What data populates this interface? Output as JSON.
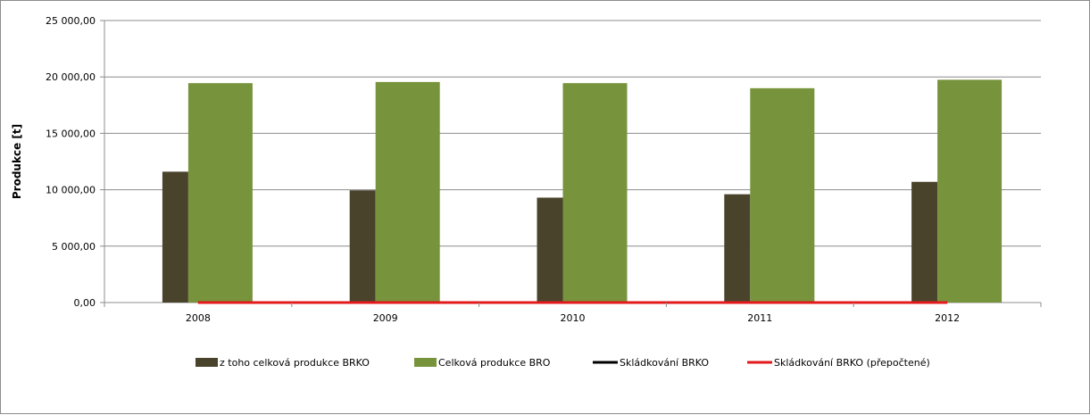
{
  "chart_data": {
    "type": "bar",
    "title": "",
    "xlabel": "",
    "ylabel": "Produkce [t]",
    "ylim": [
      0,
      25000
    ],
    "yticks": [
      "0,00",
      "5 000,00",
      "10 000,00",
      "15 000,00",
      "20 000,00",
      "25 000,00"
    ],
    "ytick_values": [
      0,
      5000,
      10000,
      15000,
      20000,
      25000
    ],
    "categories": [
      "2008",
      "2009",
      "2010",
      "2011",
      "2012"
    ],
    "grid": "horizontal",
    "legend_position": "bottom",
    "series": [
      {
        "name": "z toho celková produkce BRKO",
        "kind": "bar",
        "color": "#4a432c",
        "values": [
          11600,
          9950,
          9300,
          9600,
          10700
        ]
      },
      {
        "name": "Celková produkce BRO",
        "kind": "bar",
        "color": "#77933c",
        "values": [
          19450,
          19550,
          19450,
          19000,
          19750
        ]
      },
      {
        "name": "Skládkování BRKO",
        "kind": "line",
        "color": "#000000",
        "values": [
          0,
          0,
          0,
          0,
          0
        ]
      },
      {
        "name": "Skládkování BRKO (přepočtené)",
        "kind": "line",
        "color": "#e31a1c",
        "values": [
          0,
          0,
          0,
          0,
          0
        ]
      }
    ]
  }
}
